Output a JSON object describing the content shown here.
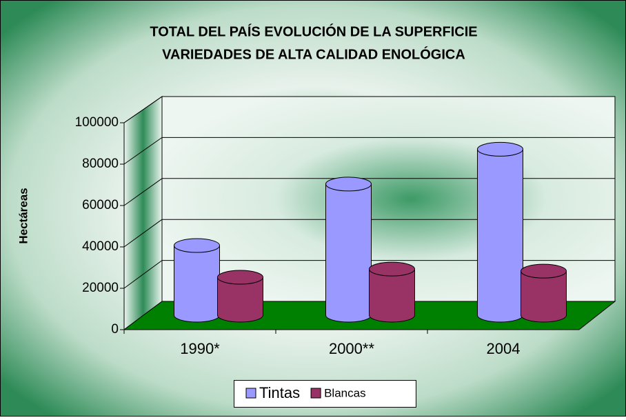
{
  "chart_data": {
    "type": "bar3d",
    "title": [
      "TOTAL DEL PAÍS EVOLUCIÓN DE LA SUPERFICIE",
      "VARIEDADES DE ALTA CALIDAD ENOLÓGICA"
    ],
    "y_label": "Hectáreas",
    "categories": [
      "1990*",
      "2000**",
      "2004"
    ],
    "series": [
      {
        "name": "Tintas",
        "color": "#9999ff",
        "values": [
          34000,
          64000,
          81000
        ]
      },
      {
        "name": "Blancas",
        "color": "#993366",
        "values": [
          18500,
          22500,
          21500
        ]
      }
    ],
    "ylim": [
      0,
      100000
    ],
    "yticks": [
      0,
      20000,
      40000,
      60000,
      80000,
      100000
    ],
    "grid": true,
    "legend": "bottom"
  }
}
